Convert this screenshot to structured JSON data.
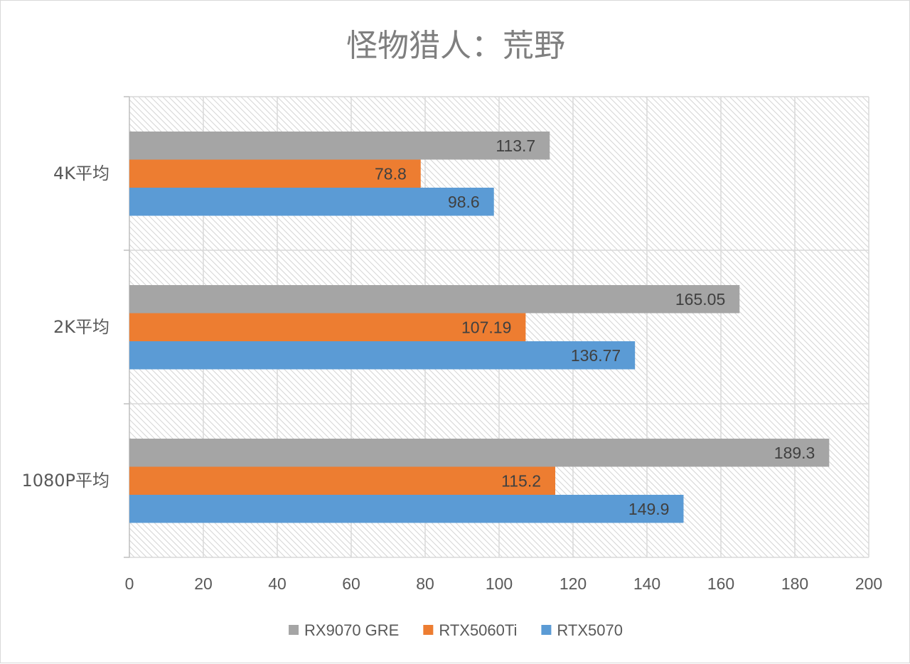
{
  "chart_data": {
    "type": "bar",
    "orientation": "horizontal",
    "title": "怪物猎人：荒野",
    "categories": [
      "4K平均",
      "2K平均",
      "1080P平均"
    ],
    "series": [
      {
        "name": "RX9070 GRE",
        "color": "#a5a5a5",
        "values": [
          113.7,
          165.05,
          189.3
        ],
        "labels": [
          "113.7",
          "165.05",
          "189.3"
        ]
      },
      {
        "name": "RTX5060Ti",
        "color": "#ed7d31",
        "values": [
          78.8,
          107.19,
          115.2
        ],
        "labels": [
          "78.8",
          "107.19",
          "115.2"
        ]
      },
      {
        "name": "RTX5070",
        "color": "#5b9bd5",
        "values": [
          98.6,
          136.77,
          149.9
        ],
        "labels": [
          "98.6",
          "136.77",
          "149.9"
        ]
      }
    ],
    "xlim": [
      0,
      200
    ],
    "xticks": [
      "0",
      "20",
      "40",
      "60",
      "80",
      "100",
      "120",
      "140",
      "160",
      "180",
      "200"
    ],
    "xlabel": "",
    "ylabel": "",
    "grid": true,
    "legend": "bottom"
  }
}
